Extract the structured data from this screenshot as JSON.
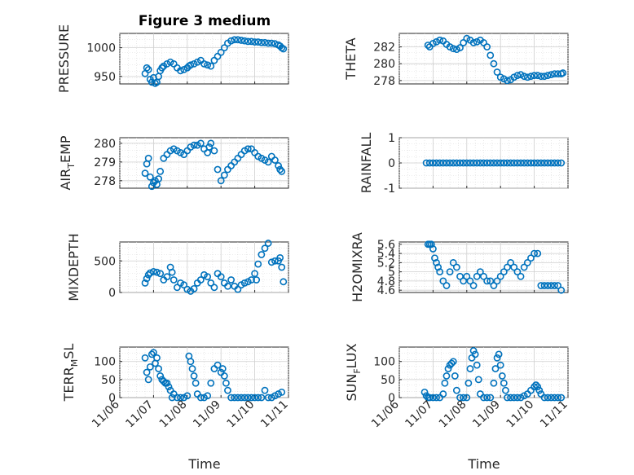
{
  "figure": {
    "title": "Figure 3 medium",
    "marker_color": "#0072BD",
    "x_tick_labels": [
      "11/06",
      "11/07",
      "11/08",
      "11/09",
      "11/10",
      "11/11"
    ],
    "x_axis_label": "Time"
  },
  "chart_data": [
    {
      "type": "scatter",
      "ylabel": "PRESSURE",
      "ylim": [
        937,
        1025
      ],
      "yticks": [
        950,
        1000
      ],
      "xlim": [
        "11/06",
        "11/11"
      ],
      "grid": true,
      "series": [
        {
          "x": [
            0.75,
            0.8,
            0.85,
            0.9,
            0.95,
            1.0,
            1.05,
            1.1,
            1.15,
            1.2,
            1.25,
            1.3,
            1.4,
            1.5,
            1.6,
            1.7,
            1.8,
            1.9,
            2.0,
            2.05,
            2.1,
            2.2,
            2.3,
            2.4,
            2.5,
            2.6,
            2.7,
            2.8,
            2.9,
            3.0,
            3.1,
            3.2,
            3.3,
            3.4,
            3.5,
            3.6,
            3.7,
            3.8,
            3.9,
            4.0,
            4.1,
            4.2,
            4.3,
            4.4,
            4.5,
            4.6,
            4.7,
            4.75,
            4.8,
            4.85
          ],
          "y": [
            955,
            965,
            962,
            945,
            940,
            948,
            938,
            940,
            950,
            960,
            965,
            968,
            972,
            975,
            972,
            965,
            960,
            962,
            965,
            968,
            970,
            972,
            975,
            978,
            972,
            970,
            968,
            978,
            985,
            992,
            1000,
            1008,
            1012,
            1014,
            1014,
            1013,
            1012,
            1011,
            1011,
            1010,
            1010,
            1009,
            1009,
            1008,
            1008,
            1007,
            1005,
            1003,
            1000,
            998
          ]
        }
      ]
    },
    {
      "type": "scatter",
      "ylabel": "THETA",
      "ylim": [
        277.6,
        283.6
      ],
      "yticks": [
        278,
        280,
        282
      ],
      "xlim": [
        "11/06",
        "11/11"
      ],
      "grid": true,
      "series": [
        {
          "x": [
            0.85,
            0.9,
            1.0,
            1.1,
            1.2,
            1.3,
            1.4,
            1.5,
            1.6,
            1.7,
            1.8,
            1.9,
            2.0,
            2.1,
            2.2,
            2.3,
            2.4,
            2.5,
            2.6,
            2.7,
            2.8,
            2.9,
            3.0,
            3.1,
            3.2,
            3.3,
            3.4,
            3.5,
            3.6,
            3.7,
            3.8,
            3.9,
            4.0,
            4.1,
            4.2,
            4.3,
            4.4,
            4.5,
            4.6,
            4.7,
            4.8,
            4.85
          ],
          "y": [
            282.2,
            282.0,
            282.4,
            282.6,
            282.8,
            282.7,
            282.3,
            282.0,
            281.8,
            281.7,
            281.9,
            282.5,
            283.0,
            282.8,
            282.5,
            282.6,
            282.8,
            282.5,
            282.0,
            281.0,
            280.0,
            279.0,
            278.4,
            278.2,
            278.0,
            278.1,
            278.4,
            278.6,
            278.7,
            278.5,
            278.4,
            278.5,
            278.6,
            278.6,
            278.5,
            278.5,
            278.6,
            278.7,
            278.8,
            278.8,
            278.8,
            278.9
          ]
        }
      ]
    },
    {
      "type": "scatter",
      "ylabel": "AIR_TEMP",
      "ylim": [
        277.6,
        280.3
      ],
      "yticks": [
        278,
        279,
        280
      ],
      "xlim": [
        "11/06",
        "11/11"
      ],
      "grid": true,
      "series": [
        {
          "x": [
            0.75,
            0.8,
            0.85,
            0.9,
            0.95,
            1.0,
            1.05,
            1.1,
            1.15,
            1.2,
            1.3,
            1.4,
            1.5,
            1.6,
            1.7,
            1.8,
            1.9,
            2.0,
            2.1,
            2.2,
            2.3,
            2.4,
            2.5,
            2.6,
            2.65,
            2.7,
            2.8,
            2.9,
            3.0,
            3.1,
            3.2,
            3.3,
            3.4,
            3.5,
            3.6,
            3.7,
            3.8,
            3.9,
            4.0,
            4.1,
            4.2,
            4.3,
            4.4,
            4.5,
            4.6,
            4.7,
            4.75,
            4.8
          ],
          "y": [
            278.4,
            278.9,
            279.2,
            278.2,
            277.7,
            277.9,
            278.0,
            277.8,
            278.1,
            278.5,
            279.2,
            279.4,
            279.6,
            279.7,
            279.6,
            279.5,
            279.4,
            279.6,
            279.8,
            279.9,
            279.9,
            280.0,
            279.7,
            279.5,
            279.8,
            280.0,
            279.6,
            278.6,
            278.0,
            278.3,
            278.6,
            278.8,
            279.0,
            279.2,
            279.4,
            279.6,
            279.7,
            279.7,
            279.5,
            279.3,
            279.2,
            279.1,
            279.0,
            279.3,
            279.1,
            278.8,
            278.6,
            278.5
          ]
        }
      ]
    },
    {
      "type": "scatter",
      "ylabel": "RAINFALL",
      "ylim": [
        -1,
        1
      ],
      "yticks": [
        -1,
        0,
        1
      ],
      "xlim": [
        "11/06",
        "11/11"
      ],
      "grid": true,
      "series": [
        {
          "x": [
            0.8,
            0.9,
            1.0,
            1.1,
            1.2,
            1.3,
            1.4,
            1.5,
            1.6,
            1.7,
            1.8,
            1.9,
            2.0,
            2.1,
            2.2,
            2.3,
            2.4,
            2.5,
            2.6,
            2.7,
            2.8,
            2.9,
            3.0,
            3.1,
            3.2,
            3.3,
            3.4,
            3.5,
            3.6,
            3.7,
            3.8,
            3.9,
            4.0,
            4.1,
            4.2,
            4.3,
            4.4,
            4.5,
            4.6,
            4.7,
            4.8
          ],
          "y": [
            0,
            0,
            0,
            0,
            0,
            0,
            0,
            0,
            0,
            0,
            0,
            0,
            0,
            0,
            0,
            0,
            0,
            0,
            0,
            0,
            0,
            0,
            0,
            0,
            0,
            0,
            0,
            0,
            0,
            0,
            0,
            0,
            0,
            0,
            0,
            0,
            0,
            0,
            0,
            0,
            0
          ]
        }
      ]
    },
    {
      "type": "scatter",
      "ylabel": "MIXDEPTH",
      "ylim": [
        0,
        800
      ],
      "yticks": [
        0,
        500
      ],
      "xlim": [
        "11/06",
        "11/11"
      ],
      "grid": true,
      "series": [
        {
          "x": [
            0.75,
            0.8,
            0.85,
            0.9,
            1.0,
            1.1,
            1.2,
            1.3,
            1.4,
            1.5,
            1.55,
            1.6,
            1.7,
            1.8,
            1.9,
            2.0,
            2.1,
            2.2,
            2.3,
            2.4,
            2.5,
            2.6,
            2.7,
            2.8,
            2.9,
            3.0,
            3.1,
            3.2,
            3.3,
            3.4,
            3.5,
            3.6,
            3.7,
            3.8,
            3.9,
            4.0,
            4.05,
            4.1,
            4.2,
            4.3,
            4.4,
            4.5,
            4.6,
            4.7,
            4.75,
            4.8,
            4.85
          ],
          "y": [
            150,
            220,
            280,
            310,
            330,
            320,
            300,
            200,
            250,
            400,
            320,
            200,
            80,
            150,
            120,
            50,
            20,
            60,
            150,
            200,
            280,
            250,
            150,
            80,
            300,
            250,
            150,
            100,
            200,
            100,
            50,
            120,
            150,
            170,
            200,
            300,
            200,
            450,
            600,
            700,
            780,
            480,
            500,
            500,
            550,
            400,
            170
          ]
        }
      ]
    },
    {
      "type": "scatter",
      "ylabel": "H2OMIXRA",
      "ylim": [
        4.55,
        5.65
      ],
      "yticks": [
        4.6,
        4.8,
        5,
        5.2,
        5.4,
        5.6
      ],
      "xlim": [
        "11/06",
        "11/11"
      ],
      "grid": true,
      "series": [
        {
          "x": [
            0.85,
            0.9,
            0.95,
            1.0,
            1.05,
            1.1,
            1.15,
            1.2,
            1.3,
            1.4,
            1.5,
            1.6,
            1.7,
            1.8,
            1.9,
            2.0,
            2.1,
            2.2,
            2.3,
            2.4,
            2.5,
            2.6,
            2.7,
            2.8,
            2.9,
            3.0,
            3.1,
            3.2,
            3.3,
            3.4,
            3.5,
            3.6,
            3.7,
            3.8,
            3.9,
            4.0,
            4.1,
            4.2,
            4.3,
            4.4,
            4.5,
            4.6,
            4.7,
            4.8
          ],
          "y": [
            5.6,
            5.6,
            5.6,
            5.5,
            5.3,
            5.2,
            5.1,
            5.0,
            4.8,
            4.7,
            5.0,
            5.2,
            5.1,
            4.9,
            4.8,
            4.9,
            4.8,
            4.7,
            4.9,
            5.0,
            4.9,
            4.8,
            4.8,
            4.7,
            4.8,
            4.9,
            5.0,
            5.1,
            5.2,
            5.1,
            5.0,
            4.9,
            5.1,
            5.2,
            5.3,
            5.4,
            5.4,
            4.7,
            4.7,
            4.7,
            4.7,
            4.7,
            4.7,
            4.6
          ]
        }
      ]
    },
    {
      "type": "scatter",
      "ylabel": "TERR_MSL",
      "ylim": [
        0,
        140
      ],
      "yticks": [
        0,
        50,
        100
      ],
      "xlim": [
        "11/06",
        "11/11"
      ],
      "grid": true,
      "series": [
        {
          "x": [
            0.75,
            0.8,
            0.85,
            0.9,
            0.95,
            1.0,
            1.05,
            1.1,
            1.15,
            1.2,
            1.25,
            1.3,
            1.35,
            1.4,
            1.45,
            1.5,
            1.55,
            1.6,
            1.7,
            1.8,
            1.9,
            2.0,
            2.05,
            2.1,
            2.15,
            2.2,
            2.25,
            2.3,
            2.4,
            2.5,
            2.6,
            2.7,
            2.8,
            2.9,
            3.0,
            3.05,
            3.1,
            3.15,
            3.2,
            3.3,
            3.4,
            3.5,
            3.6,
            3.7,
            3.8,
            3.9,
            4.0,
            4.1,
            4.2,
            4.3,
            4.4,
            4.5,
            4.6,
            4.7,
            4.8
          ],
          "y": [
            110,
            70,
            50,
            85,
            120,
            125,
            95,
            110,
            80,
            60,
            50,
            45,
            40,
            40,
            30,
            20,
            0,
            10,
            0,
            0,
            0,
            5,
            115,
            100,
            80,
            60,
            40,
            10,
            0,
            0,
            5,
            40,
            80,
            90,
            70,
            80,
            60,
            40,
            20,
            0,
            0,
            0,
            0,
            0,
            0,
            0,
            0,
            0,
            0,
            20,
            0,
            0,
            5,
            10,
            15
          ]
        }
      ]
    },
    {
      "type": "scatter",
      "ylabel": "SUN_FLUX",
      "ylim": [
        0,
        140
      ],
      "yticks": [
        0,
        50,
        100
      ],
      "xlim": [
        "11/06",
        "11/11"
      ],
      "grid": true,
      "series": [
        {
          "x": [
            0.75,
            0.8,
            0.85,
            0.9,
            1.0,
            1.1,
            1.2,
            1.3,
            1.35,
            1.4,
            1.45,
            1.5,
            1.55,
            1.6,
            1.65,
            1.7,
            1.8,
            1.9,
            2.0,
            2.05,
            2.1,
            2.15,
            2.2,
            2.25,
            2.3,
            2.35,
            2.4,
            2.5,
            2.6,
            2.7,
            2.8,
            2.85,
            2.9,
            2.95,
            3.0,
            3.05,
            3.1,
            3.15,
            3.2,
            3.3,
            3.4,
            3.5,
            3.6,
            3.7,
            3.8,
            3.9,
            4.0,
            4.05,
            4.1,
            4.15,
            4.2,
            4.3,
            4.4,
            4.5,
            4.6,
            4.7,
            4.8
          ],
          "y": [
            15,
            5,
            0,
            0,
            0,
            0,
            0,
            10,
            40,
            60,
            80,
            90,
            95,
            100,
            60,
            20,
            0,
            0,
            0,
            40,
            80,
            110,
            130,
            120,
            90,
            50,
            10,
            0,
            0,
            0,
            40,
            80,
            110,
            120,
            90,
            60,
            40,
            20,
            0,
            0,
            0,
            0,
            0,
            5,
            10,
            20,
            30,
            35,
            30,
            20,
            10,
            0,
            0,
            0,
            0,
            0,
            0
          ]
        }
      ]
    }
  ]
}
